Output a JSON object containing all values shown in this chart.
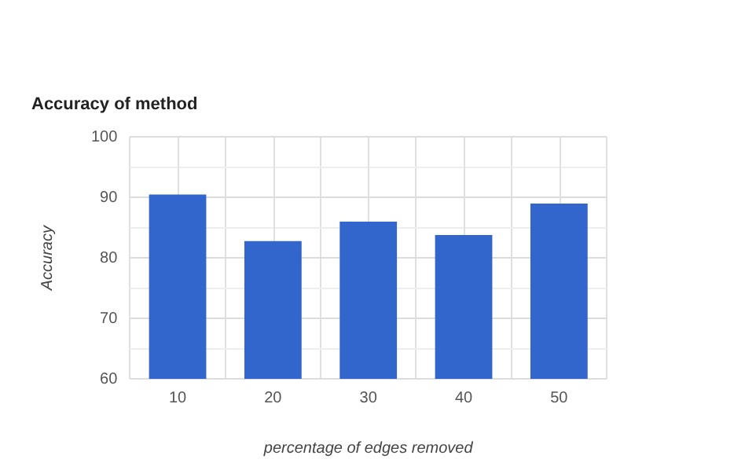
{
  "chart_data": {
    "type": "bar",
    "title": "Accuracy of method",
    "xlabel": "percentage of edges removed",
    "ylabel": "Accuracy",
    "categories": [
      "10",
      "20",
      "30",
      "40",
      "50"
    ],
    "values": [
      90.5,
      82.8,
      86.0,
      83.8,
      89.0
    ],
    "color": "#3366cc",
    "ylim": [
      60,
      100
    ],
    "yticks": [
      60,
      {
        "value": 65,
        "label": null
      },
      70,
      {
        "value": 75,
        "label": null
      },
      80,
      {
        "value": 85,
        "label": null
      },
      90,
      {
        "value": 95,
        "label": null
      },
      100
    ],
    "grid": true
  }
}
